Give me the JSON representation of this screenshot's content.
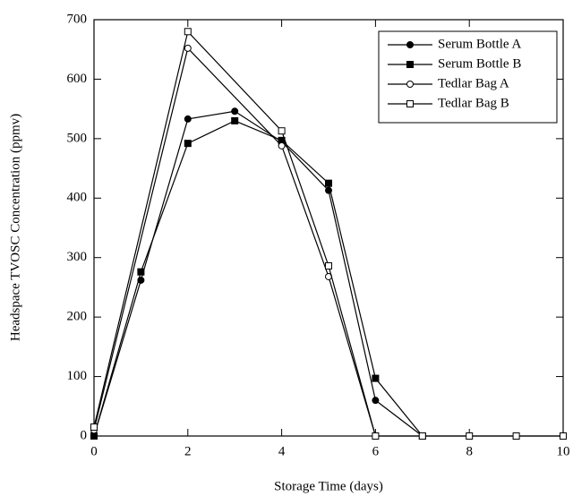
{
  "chart_data": {
    "type": "line",
    "x_label": "Storage Time (days)",
    "y_label": "Headspace TVOSC Concentration (ppmv)",
    "xlim": [
      0,
      10
    ],
    "xticks": [
      0,
      2,
      4,
      6,
      8,
      10
    ],
    "ylim": [
      0,
      700
    ],
    "yticks": [
      0,
      100,
      200,
      300,
      400,
      500,
      600,
      700
    ],
    "legend": "upper right",
    "series": [
      {
        "name": "Serum Bottle A",
        "color": "#000000",
        "marker": "filled-circle",
        "x": [
          0,
          1,
          2,
          3,
          4,
          5,
          6,
          7
        ],
        "values": [
          0,
          262,
          533,
          546,
          495,
          413,
          60,
          0
        ]
      },
      {
        "name": "Serum Bottle B",
        "color": "#000000",
        "marker": "filled-square",
        "x": [
          0,
          1,
          2,
          3,
          4,
          5,
          6,
          7
        ],
        "values": [
          0,
          276,
          492,
          530,
          497,
          425,
          97,
          0
        ]
      },
      {
        "name": "Tedlar Bag A",
        "color": "#000000",
        "marker": "open-circle",
        "x": [
          0,
          2,
          4,
          5,
          6
        ],
        "values": [
          10,
          652,
          488,
          268,
          0
        ]
      },
      {
        "name": "Tedlar Bag B",
        "color": "#000000",
        "marker": "open-square",
        "x": [
          0,
          2,
          4,
          5,
          6,
          7,
          8,
          9,
          10
        ],
        "values": [
          15,
          680,
          513,
          286,
          0,
          0,
          0,
          0,
          0
        ]
      }
    ]
  }
}
